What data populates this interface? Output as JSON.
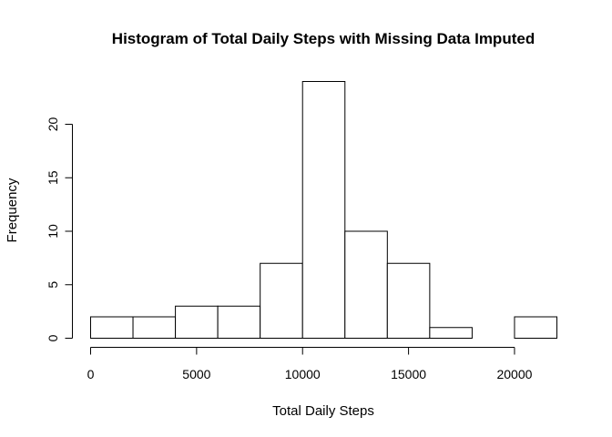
{
  "chart_data": {
    "type": "bar",
    "title": "Histogram of Total Daily Steps with Missing Data Imputed",
    "xlabel": "Total Daily Steps",
    "ylabel": "Frequency",
    "bin_edges": [
      0,
      2000,
      4000,
      6000,
      8000,
      10000,
      12000,
      14000,
      16000,
      18000,
      20000,
      22000
    ],
    "values": [
      2,
      2,
      3,
      3,
      7,
      24,
      10,
      7,
      1,
      0,
      2
    ],
    "xlim": [
      0,
      22000
    ],
    "ylim": [
      0,
      24
    ],
    "x_ticks": [
      0,
      5000,
      10000,
      15000,
      20000
    ],
    "x_tick_labels": [
      "0",
      "5000",
      "10000",
      "15000",
      "20000"
    ],
    "y_ticks": [
      0,
      5,
      10,
      15,
      20
    ],
    "y_tick_labels": [
      "0",
      "5",
      "10",
      "15",
      "20"
    ],
    "grid": false,
    "bar_fill": "#ffffff",
    "bar_stroke": "#000000"
  }
}
